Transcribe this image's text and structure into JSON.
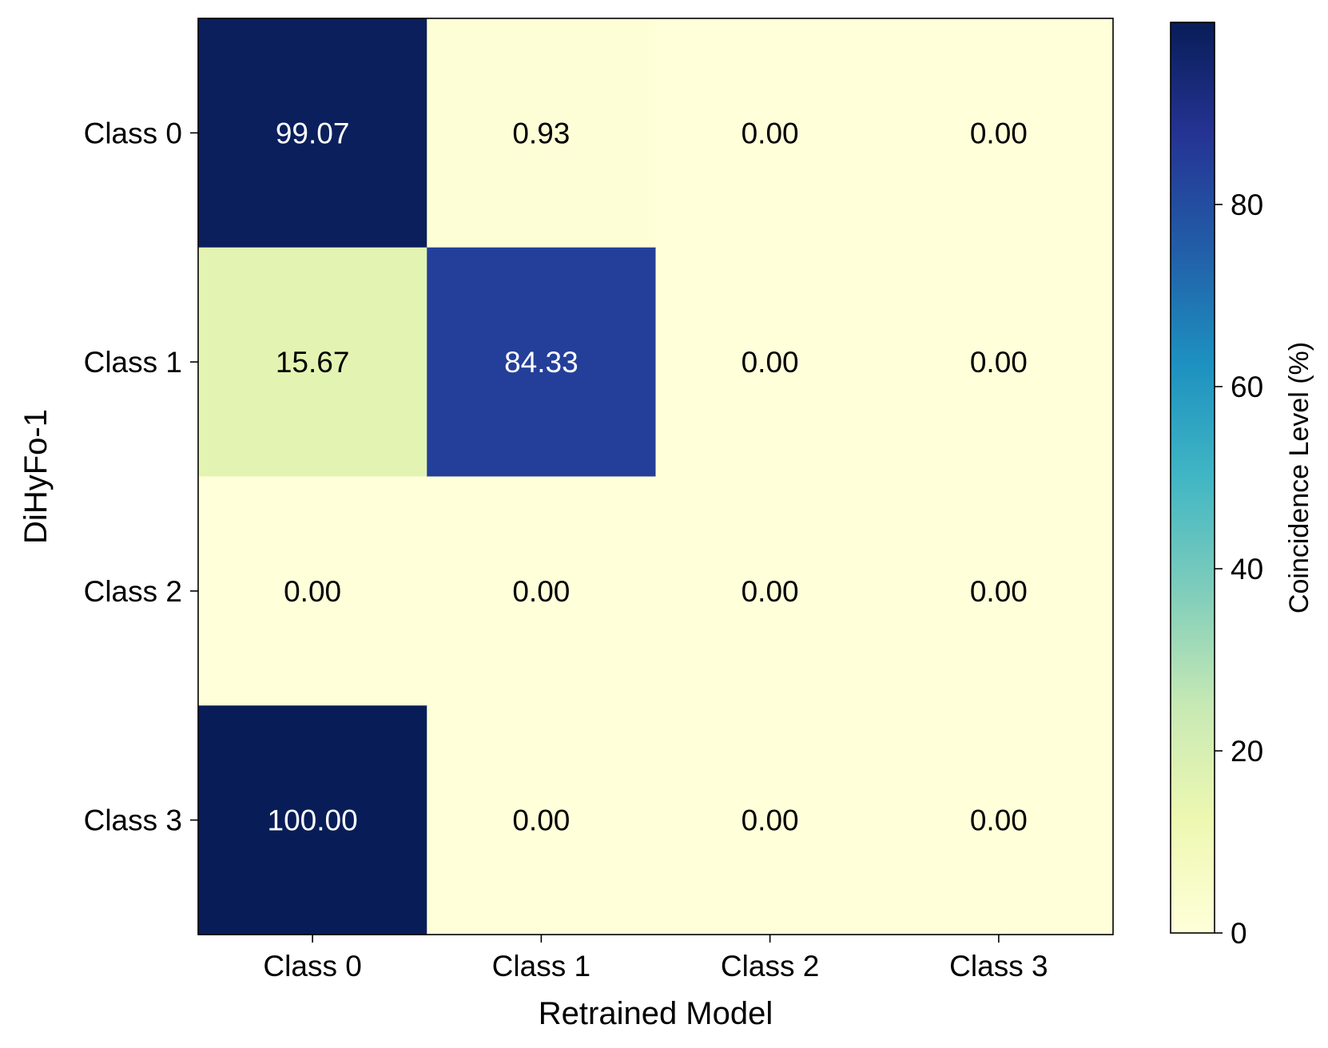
{
  "chart_data": {
    "type": "heatmap",
    "title": "",
    "xlabel": "Retrained Model",
    "ylabel": "DiHyFo-1",
    "x_categories": [
      "Class 0",
      "Class 1",
      "Class 2",
      "Class 3"
    ],
    "y_categories": [
      "Class 0",
      "Class 1",
      "Class 2",
      "Class 3"
    ],
    "values": [
      [
        99.07,
        0.93,
        0.0,
        0.0
      ],
      [
        15.67,
        84.33,
        0.0,
        0.0
      ],
      [
        0.0,
        0.0,
        0.0,
        0.0
      ],
      [
        100.0,
        0.0,
        0.0,
        0.0
      ]
    ],
    "value_labels": [
      [
        "99.07",
        "0.93",
        "0.00",
        "0.00"
      ],
      [
        "15.67",
        "84.33",
        "0.00",
        "0.00"
      ],
      [
        "0.00",
        "0.00",
        "0.00",
        "0.00"
      ],
      [
        "100.00",
        "0.00",
        "0.00",
        "0.00"
      ]
    ],
    "colormap": "YlGnBu",
    "color_range": [
      0,
      100
    ],
    "colorbar": {
      "label": "Coincidence Level (%)",
      "ticks": [
        0,
        20,
        40,
        60,
        80
      ],
      "tick_labels": [
        "0",
        "20",
        "40",
        "60",
        "80"
      ]
    },
    "grid": false,
    "legend": "none"
  }
}
